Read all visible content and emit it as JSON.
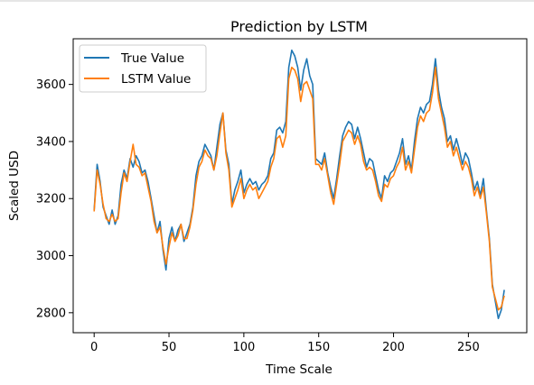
{
  "chart_data": {
    "type": "line",
    "title": "Prediction by LSTM",
    "xlabel": "Time Scale",
    "ylabel": "Scaled USD",
    "xlim": [
      -14,
      289
    ],
    "ylim": [
      2730,
      3760
    ],
    "xticks": [
      0,
      50,
      100,
      150,
      200,
      250
    ],
    "yticks": [
      2800,
      3000,
      3200,
      3400,
      3600
    ],
    "grid": false,
    "legend_position": "top-left",
    "series": [
      {
        "name": "True Value",
        "color": "#1f77b4",
        "anchors": [
          [
            0,
            3160
          ],
          [
            2,
            3320
          ],
          [
            4,
            3260
          ],
          [
            6,
            3170
          ],
          [
            8,
            3140
          ],
          [
            10,
            3110
          ],
          [
            12,
            3160
          ],
          [
            14,
            3110
          ],
          [
            16,
            3140
          ],
          [
            18,
            3250
          ],
          [
            20,
            3300
          ],
          [
            22,
            3270
          ],
          [
            24,
            3340
          ],
          [
            26,
            3310
          ],
          [
            28,
            3350
          ],
          [
            30,
            3330
          ],
          [
            32,
            3290
          ],
          [
            34,
            3300
          ],
          [
            36,
            3260
          ],
          [
            38,
            3200
          ],
          [
            40,
            3140
          ],
          [
            42,
            3080
          ],
          [
            44,
            3120
          ],
          [
            46,
            3020
          ],
          [
            48,
            2950
          ],
          [
            50,
            3060
          ],
          [
            52,
            3100
          ],
          [
            54,
            3050
          ],
          [
            56,
            3090
          ],
          [
            58,
            3110
          ],
          [
            60,
            3050
          ],
          [
            62,
            3080
          ],
          [
            64,
            3110
          ],
          [
            66,
            3170
          ],
          [
            68,
            3280
          ],
          [
            70,
            3330
          ],
          [
            72,
            3350
          ],
          [
            74,
            3390
          ],
          [
            76,
            3370
          ],
          [
            78,
            3350
          ],
          [
            80,
            3300
          ],
          [
            82,
            3380
          ],
          [
            84,
            3460
          ],
          [
            86,
            3500
          ],
          [
            88,
            3370
          ],
          [
            90,
            3320
          ],
          [
            92,
            3180
          ],
          [
            94,
            3230
          ],
          [
            96,
            3260
          ],
          [
            98,
            3300
          ],
          [
            100,
            3220
          ],
          [
            102,
            3250
          ],
          [
            104,
            3270
          ],
          [
            106,
            3250
          ],
          [
            108,
            3260
          ],
          [
            110,
            3230
          ],
          [
            112,
            3250
          ],
          [
            114,
            3260
          ],
          [
            116,
            3280
          ],
          [
            118,
            3340
          ],
          [
            120,
            3360
          ],
          [
            122,
            3440
          ],
          [
            124,
            3450
          ],
          [
            126,
            3430
          ],
          [
            128,
            3470
          ],
          [
            130,
            3660
          ],
          [
            132,
            3720
          ],
          [
            134,
            3700
          ],
          [
            136,
            3660
          ],
          [
            138,
            3580
          ],
          [
            140,
            3650
          ],
          [
            142,
            3690
          ],
          [
            144,
            3630
          ],
          [
            146,
            3600
          ],
          [
            148,
            3340
          ],
          [
            150,
            3330
          ],
          [
            152,
            3320
          ],
          [
            154,
            3360
          ],
          [
            156,
            3290
          ],
          [
            158,
            3240
          ],
          [
            160,
            3200
          ],
          [
            162,
            3270
          ],
          [
            164,
            3350
          ],
          [
            166,
            3420
          ],
          [
            168,
            3450
          ],
          [
            170,
            3470
          ],
          [
            172,
            3460
          ],
          [
            174,
            3410
          ],
          [
            176,
            3450
          ],
          [
            178,
            3410
          ],
          [
            180,
            3360
          ],
          [
            182,
            3310
          ],
          [
            184,
            3340
          ],
          [
            186,
            3330
          ],
          [
            188,
            3280
          ],
          [
            190,
            3230
          ],
          [
            192,
            3200
          ],
          [
            194,
            3280
          ],
          [
            196,
            3260
          ],
          [
            198,
            3290
          ],
          [
            200,
            3300
          ],
          [
            202,
            3330
          ],
          [
            204,
            3360
          ],
          [
            206,
            3410
          ],
          [
            208,
            3320
          ],
          [
            210,
            3350
          ],
          [
            212,
            3300
          ],
          [
            214,
            3400
          ],
          [
            216,
            3480
          ],
          [
            218,
            3520
          ],
          [
            220,
            3500
          ],
          [
            222,
            3530
          ],
          [
            224,
            3540
          ],
          [
            226,
            3600
          ],
          [
            228,
            3690
          ],
          [
            230,
            3580
          ],
          [
            232,
            3520
          ],
          [
            234,
            3480
          ],
          [
            236,
            3400
          ],
          [
            238,
            3420
          ],
          [
            240,
            3370
          ],
          [
            242,
            3410
          ],
          [
            244,
            3370
          ],
          [
            246,
            3320
          ],
          [
            248,
            3360
          ],
          [
            250,
            3340
          ],
          [
            252,
            3290
          ],
          [
            254,
            3230
          ],
          [
            256,
            3260
          ],
          [
            258,
            3210
          ],
          [
            260,
            3270
          ],
          [
            262,
            3160
          ],
          [
            264,
            3060
          ],
          [
            266,
            2900
          ],
          [
            268,
            2840
          ],
          [
            270,
            2780
          ],
          [
            272,
            2810
          ],
          [
            274,
            2880
          ]
        ]
      },
      {
        "name": "LSTM Value",
        "color": "#ff7f0e",
        "anchors": [
          [
            0,
            3155
          ],
          [
            2,
            3300
          ],
          [
            4,
            3250
          ],
          [
            6,
            3180
          ],
          [
            8,
            3130
          ],
          [
            10,
            3120
          ],
          [
            12,
            3145
          ],
          [
            14,
            3120
          ],
          [
            16,
            3130
          ],
          [
            18,
            3220
          ],
          [
            20,
            3290
          ],
          [
            22,
            3260
          ],
          [
            24,
            3330
          ],
          [
            26,
            3390
          ],
          [
            28,
            3320
          ],
          [
            30,
            3310
          ],
          [
            32,
            3280
          ],
          [
            34,
            3290
          ],
          [
            36,
            3240
          ],
          [
            38,
            3190
          ],
          [
            40,
            3120
          ],
          [
            42,
            3080
          ],
          [
            44,
            3100
          ],
          [
            46,
            3030
          ],
          [
            48,
            2970
          ],
          [
            50,
            3030
          ],
          [
            52,
            3080
          ],
          [
            54,
            3050
          ],
          [
            56,
            3070
          ],
          [
            58,
            3110
          ],
          [
            60,
            3060
          ],
          [
            62,
            3060
          ],
          [
            64,
            3100
          ],
          [
            66,
            3160
          ],
          [
            68,
            3250
          ],
          [
            70,
            3310
          ],
          [
            72,
            3330
          ],
          [
            74,
            3370
          ],
          [
            76,
            3350
          ],
          [
            78,
            3340
          ],
          [
            80,
            3300
          ],
          [
            82,
            3350
          ],
          [
            84,
            3430
          ],
          [
            86,
            3500
          ],
          [
            88,
            3360
          ],
          [
            90,
            3300
          ],
          [
            92,
            3170
          ],
          [
            94,
            3200
          ],
          [
            96,
            3230
          ],
          [
            98,
            3270
          ],
          [
            100,
            3200
          ],
          [
            102,
            3230
          ],
          [
            104,
            3250
          ],
          [
            106,
            3230
          ],
          [
            108,
            3240
          ],
          [
            110,
            3200
          ],
          [
            112,
            3220
          ],
          [
            114,
            3240
          ],
          [
            116,
            3260
          ],
          [
            118,
            3310
          ],
          [
            120,
            3340
          ],
          [
            122,
            3410
          ],
          [
            124,
            3420
          ],
          [
            126,
            3380
          ],
          [
            128,
            3420
          ],
          [
            130,
            3620
          ],
          [
            132,
            3660
          ],
          [
            134,
            3650
          ],
          [
            136,
            3620
          ],
          [
            138,
            3540
          ],
          [
            140,
            3600
          ],
          [
            142,
            3610
          ],
          [
            144,
            3580
          ],
          [
            146,
            3550
          ],
          [
            148,
            3320
          ],
          [
            150,
            3320
          ],
          [
            152,
            3300
          ],
          [
            154,
            3340
          ],
          [
            156,
            3280
          ],
          [
            158,
            3220
          ],
          [
            160,
            3180
          ],
          [
            162,
            3250
          ],
          [
            164,
            3320
          ],
          [
            166,
            3400
          ],
          [
            168,
            3420
          ],
          [
            170,
            3440
          ],
          [
            172,
            3430
          ],
          [
            174,
            3390
          ],
          [
            176,
            3420
          ],
          [
            178,
            3390
          ],
          [
            180,
            3330
          ],
          [
            182,
            3300
          ],
          [
            184,
            3310
          ],
          [
            186,
            3300
          ],
          [
            188,
            3260
          ],
          [
            190,
            3210
          ],
          [
            192,
            3190
          ],
          [
            194,
            3250
          ],
          [
            196,
            3240
          ],
          [
            198,
            3270
          ],
          [
            200,
            3280
          ],
          [
            202,
            3310
          ],
          [
            204,
            3330
          ],
          [
            206,
            3380
          ],
          [
            208,
            3300
          ],
          [
            210,
            3330
          ],
          [
            212,
            3290
          ],
          [
            214,
            3370
          ],
          [
            216,
            3450
          ],
          [
            218,
            3490
          ],
          [
            220,
            3470
          ],
          [
            222,
            3500
          ],
          [
            224,
            3510
          ],
          [
            226,
            3570
          ],
          [
            228,
            3660
          ],
          [
            230,
            3550
          ],
          [
            232,
            3500
          ],
          [
            234,
            3450
          ],
          [
            236,
            3380
          ],
          [
            238,
            3400
          ],
          [
            240,
            3350
          ],
          [
            242,
            3380
          ],
          [
            244,
            3340
          ],
          [
            246,
            3300
          ],
          [
            248,
            3330
          ],
          [
            250,
            3310
          ],
          [
            252,
            3270
          ],
          [
            254,
            3210
          ],
          [
            256,
            3240
          ],
          [
            258,
            3200
          ],
          [
            260,
            3240
          ],
          [
            262,
            3150
          ],
          [
            264,
            3050
          ],
          [
            266,
            2890
          ],
          [
            268,
            2850
          ],
          [
            270,
            2810
          ],
          [
            272,
            2820
          ],
          [
            274,
            2860
          ]
        ]
      }
    ]
  }
}
